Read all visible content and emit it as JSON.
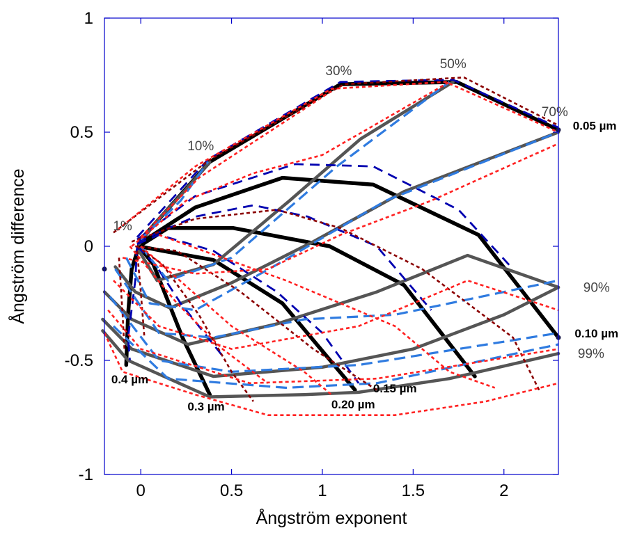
{
  "chart_data": {
    "type": "line",
    "xlabel": "Ångström exponent",
    "ylabel": "Ångström difference",
    "xlim": [
      -0.2,
      2.3
    ],
    "ylim": [
      -1,
      1
    ],
    "x_ticks": [
      {
        "value": 0,
        "label": "0"
      },
      {
        "value": 0.5,
        "label": "0.5"
      },
      {
        "value": 1,
        "label": "1"
      },
      {
        "value": 1.5,
        "label": "1.5"
      },
      {
        "value": 2,
        "label": "2"
      }
    ],
    "y_ticks": [
      {
        "value": -1,
        "label": "-1"
      },
      {
        "value": -0.5,
        "label": "-0.5"
      },
      {
        "value": 0,
        "label": "0"
      },
      {
        "value": 0.5,
        "label": "0.5"
      },
      {
        "value": 1,
        "label": "1"
      }
    ],
    "grid": false,
    "fine_mode_fractions": [
      "1%",
      "10%",
      "30%",
      "50%",
      "70%",
      "90%",
      "99%"
    ],
    "fine_mode_radii": [
      "0.05 µm",
      "0.10 µm",
      "0.15 µm",
      "0.20 µm",
      "0.3 µm",
      "0.4 µm"
    ],
    "fraction_labels": [
      {
        "text": "1%",
        "x": -0.1,
        "y": 0.07
      },
      {
        "text": "10%",
        "x": 0.33,
        "y": 0.42
      },
      {
        "text": "30%",
        "x": 1.09,
        "y": 0.75
      },
      {
        "text": "50%",
        "x": 1.72,
        "y": 0.78
      },
      {
        "text": "70%",
        "x": 2.28,
        "y": 0.57
      },
      {
        "text": "90%",
        "x": 2.51,
        "y": -0.2
      },
      {
        "text": "99%",
        "x": 2.48,
        "y": -0.49
      }
    ],
    "radius_labels": [
      {
        "text": "0.05 µm",
        "x": 2.5,
        "y": 0.51
      },
      {
        "text": "0.10 µm",
        "x": 2.51,
        "y": -0.4
      },
      {
        "text": "0.15 µm",
        "x": 1.4,
        "y": -0.64
      },
      {
        "text": "0.20 µm",
        "x": 1.17,
        "y": -0.71
      },
      {
        "text": "0.3 µm",
        "x": 0.36,
        "y": -0.72
      },
      {
        "text": "0.4 µm",
        "x": -0.06,
        "y": -0.6
      }
    ],
    "series": [
      {
        "style": "black-solid",
        "color": "#000000",
        "lines": [
          [
            [
              -0.01,
              0.02
            ],
            [
              0.38,
              0.37
            ],
            [
              1.1,
              0.71
            ],
            [
              1.74,
              0.72
            ],
            [
              2.3,
              0.51
            ]
          ],
          [
            [
              -0.01,
              0.01
            ],
            [
              0.3,
              0.17
            ],
            [
              0.78,
              0.3
            ],
            [
              1.28,
              0.27
            ],
            [
              1.86,
              0.05
            ],
            [
              2.3,
              -0.4
            ]
          ],
          [
            [
              -0.01,
              0.0
            ],
            [
              0.15,
              0.08
            ],
            [
              0.51,
              0.08
            ],
            [
              1.04,
              0.0
            ],
            [
              1.45,
              -0.17
            ],
            [
              1.84,
              -0.57
            ]
          ],
          [
            [
              -0.01,
              0.0
            ],
            [
              0.12,
              -0.02
            ],
            [
              0.4,
              -0.06
            ],
            [
              0.78,
              -0.25
            ],
            [
              1.18,
              -0.63
            ]
          ],
          [
            [
              -0.01,
              0.0
            ],
            [
              0.07,
              -0.08
            ],
            [
              0.23,
              -0.4
            ],
            [
              0.38,
              -0.65
            ]
          ],
          [
            [
              -0.01,
              0.0
            ],
            [
              -0.05,
              -0.1
            ],
            [
              -0.07,
              -0.3
            ],
            [
              -0.08,
              -0.52
            ]
          ]
        ]
      },
      {
        "style": "gray-solid",
        "color": "#555555",
        "lines": [
          [
            [
              -0.01,
              0.01
            ],
            [
              0.1,
              0.12
            ],
            [
              0.25,
              0.25
            ],
            [
              0.38,
              0.37
            ]
          ],
          [
            [
              -0.01,
              -0.02
            ],
            [
              0.09,
              -0.15
            ],
            [
              0.4,
              -0.08
            ],
            [
              0.82,
              0.2
            ],
            [
              1.21,
              0.47
            ],
            [
              1.72,
              0.72
            ]
          ],
          [
            [
              -0.14,
              -0.09
            ],
            [
              -0.03,
              -0.2
            ],
            [
              0.16,
              -0.27
            ],
            [
              0.5,
              -0.16
            ],
            [
              0.95,
              0.02
            ],
            [
              1.45,
              0.24
            ],
            [
              2.3,
              0.5
            ]
          ],
          [
            [
              -0.2,
              -0.2
            ],
            [
              -0.05,
              -0.32
            ],
            [
              0.26,
              -0.43
            ],
            [
              0.75,
              -0.34
            ],
            [
              1.3,
              -0.2
            ],
            [
              1.8,
              -0.04
            ],
            [
              2.3,
              -0.18
            ]
          ],
          [
            [
              -0.21,
              -0.32
            ],
            [
              -0.05,
              -0.45
            ],
            [
              0.4,
              -0.57
            ],
            [
              1.0,
              -0.53
            ],
            [
              1.5,
              -0.45
            ],
            [
              2.0,
              -0.3
            ],
            [
              2.3,
              -0.18
            ]
          ],
          [
            [
              -0.21,
              -0.37
            ],
            [
              -0.07,
              -0.5
            ],
            [
              0.38,
              -0.66
            ],
            [
              0.9,
              -0.65
            ],
            [
              1.2,
              -0.64
            ],
            [
              1.7,
              -0.58
            ],
            [
              2.3,
              -0.47
            ]
          ]
        ]
      },
      {
        "style": "navy-dashed",
        "color": "#0000b0",
        "lines": [
          [
            [
              -0.02,
              0.04
            ],
            [
              0.37,
              0.38
            ],
            [
              1.1,
              0.72
            ],
            [
              1.72,
              0.73
            ],
            [
              2.3,
              0.52
            ]
          ],
          [
            [
              -0.02,
              0.03
            ],
            [
              0.3,
              0.22
            ],
            [
              0.85,
              0.36
            ],
            [
              1.28,
              0.35
            ],
            [
              1.75,
              0.16
            ],
            [
              2.05,
              -0.1
            ]
          ],
          [
            [
              -0.02,
              0.02
            ],
            [
              0.3,
              0.13
            ],
            [
              0.62,
              0.18
            ],
            [
              0.92,
              0.13
            ],
            [
              1.3,
              0.0
            ],
            [
              1.6,
              -0.28
            ]
          ],
          [
            [
              -0.02,
              0.01
            ],
            [
              0.1,
              0.05
            ],
            [
              0.4,
              -0.02
            ],
            [
              0.75,
              -0.2
            ],
            [
              1.0,
              -0.38
            ],
            [
              1.2,
              -0.6
            ]
          ],
          [
            [
              -0.02,
              0.0
            ],
            [
              0.08,
              -0.08
            ],
            [
              0.22,
              -0.25
            ],
            [
              0.45,
              -0.48
            ]
          ],
          [
            [
              -0.02,
              0.0
            ],
            [
              -0.03,
              -0.15
            ],
            [
              -0.07,
              -0.4
            ],
            [
              -0.06,
              -0.5
            ]
          ]
        ]
      },
      {
        "style": "blue-dashed",
        "color": "#2f7be0",
        "lines": [
          [
            [
              0.0,
              0.03
            ],
            [
              0.22,
              0.2
            ],
            [
              0.37,
              0.37
            ]
          ],
          [
            [
              0.0,
              0.0
            ],
            [
              0.15,
              -0.15
            ],
            [
              0.5,
              -0.05
            ],
            [
              1.08,
              0.35
            ],
            [
              1.7,
              0.72
            ]
          ],
          [
            [
              -0.08,
              -0.05
            ],
            [
              0.05,
              -0.25
            ],
            [
              0.3,
              -0.28
            ],
            [
              0.75,
              -0.08
            ],
            [
              1.35,
              0.2
            ],
            [
              2.3,
              0.5
            ]
          ],
          [
            [
              -0.14,
              -0.1
            ],
            [
              0.1,
              -0.38
            ],
            [
              0.4,
              -0.4
            ],
            [
              0.9,
              -0.32
            ],
            [
              1.4,
              -0.3
            ],
            [
              2.3,
              -0.15
            ]
          ],
          [
            [
              -0.17,
              -0.22
            ],
            [
              0.1,
              -0.5
            ],
            [
              0.5,
              -0.55
            ],
            [
              1.2,
              -0.52
            ],
            [
              2.3,
              -0.38
            ]
          ],
          [
            [
              -0.15,
              -0.35
            ],
            [
              0.15,
              -0.58
            ],
            [
              0.8,
              -0.62
            ],
            [
              1.3,
              -0.6
            ],
            [
              2.3,
              -0.43
            ]
          ]
        ]
      },
      {
        "style": "darkred-dotted",
        "color": "#8b0000",
        "lines": [
          [
            [
              -0.15,
              0.06
            ],
            [
              0.38,
              0.38
            ],
            [
              1.12,
              0.71
            ],
            [
              1.78,
              0.74
            ],
            [
              2.3,
              0.53
            ]
          ],
          [
            [
              -0.05,
              0.02
            ],
            [
              0.3,
              0.12
            ],
            [
              0.75,
              0.16
            ],
            [
              1.1,
              0.08
            ],
            [
              1.55,
              -0.1
            ],
            [
              2.05,
              -0.4
            ],
            [
              2.2,
              -0.64
            ]
          ],
          [
            [
              -0.03,
              0.0
            ],
            [
              0.2,
              -0.02
            ],
            [
              0.55,
              -0.2
            ],
            [
              0.95,
              -0.45
            ],
            [
              1.3,
              -0.63
            ]
          ],
          [
            [
              -0.02,
              0.0
            ],
            [
              0.12,
              -0.08
            ],
            [
              0.32,
              -0.3
            ],
            [
              0.5,
              -0.55
            ],
            [
              0.62,
              -0.68
            ]
          ],
          [
            [
              -0.02,
              -0.02
            ],
            [
              0.0,
              -0.2
            ],
            [
              0.02,
              -0.4
            ]
          ],
          [
            [
              -0.12,
              -0.05
            ],
            [
              -0.1,
              -0.3
            ],
            [
              -0.09,
              -0.45
            ]
          ]
        ]
      },
      {
        "style": "red-dotted",
        "color": "#ff2020",
        "lines": [
          [
            [
              -0.13,
              0.07
            ],
            [
              0.3,
              0.35
            ],
            [
              1.05,
              0.69
            ],
            [
              1.68,
              0.72
            ],
            [
              2.3,
              0.5
            ]
          ],
          [
            [
              0.0,
              0.04
            ],
            [
              0.32,
              0.3
            ],
            [
              1.05,
              0.68
            ]
          ],
          [
            [
              -0.05,
              0.0
            ],
            [
              0.25,
              0.2
            ],
            [
              0.62,
              0.32
            ],
            [
              1.0,
              0.4
            ],
            [
              1.7,
              0.72
            ]
          ],
          [
            [
              -0.1,
              -0.05
            ],
            [
              0.3,
              -0.12
            ],
            [
              0.7,
              -0.1
            ],
            [
              1.1,
              0.05
            ],
            [
              1.6,
              0.2
            ],
            [
              2.3,
              0.45
            ]
          ],
          [
            [
              -0.15,
              -0.15
            ],
            [
              0.1,
              -0.35
            ],
            [
              0.5,
              -0.45
            ],
            [
              1.2,
              -0.35
            ],
            [
              1.8,
              -0.15
            ],
            [
              2.3,
              -0.28
            ]
          ],
          [
            [
              -0.18,
              -0.28
            ],
            [
              0.0,
              -0.45
            ],
            [
              0.6,
              -0.6
            ],
            [
              1.3,
              -0.58
            ],
            [
              2.3,
              -0.45
            ]
          ],
          [
            [
              -0.2,
              -0.38
            ],
            [
              -0.1,
              -0.55
            ],
            [
              0.3,
              -0.65
            ],
            [
              0.7,
              -0.74
            ],
            [
              1.4,
              -0.74
            ],
            [
              1.9,
              -0.68
            ],
            [
              2.3,
              -0.6
            ]
          ],
          [
            [
              -0.06,
              0.0
            ],
            [
              0.2,
              -0.25
            ],
            [
              0.45,
              -0.45
            ],
            [
              0.7,
              -0.6
            ]
          ],
          [
            [
              0.0,
              0.0
            ],
            [
              0.5,
              -0.35
            ],
            [
              0.9,
              -0.55
            ],
            [
              1.05,
              -0.65
            ]
          ],
          [
            [
              0.1,
              0.05
            ],
            [
              0.8,
              -0.15
            ],
            [
              1.4,
              -0.35
            ],
            [
              1.7,
              -0.55
            ],
            [
              1.95,
              -0.62
            ]
          ]
        ]
      }
    ]
  }
}
